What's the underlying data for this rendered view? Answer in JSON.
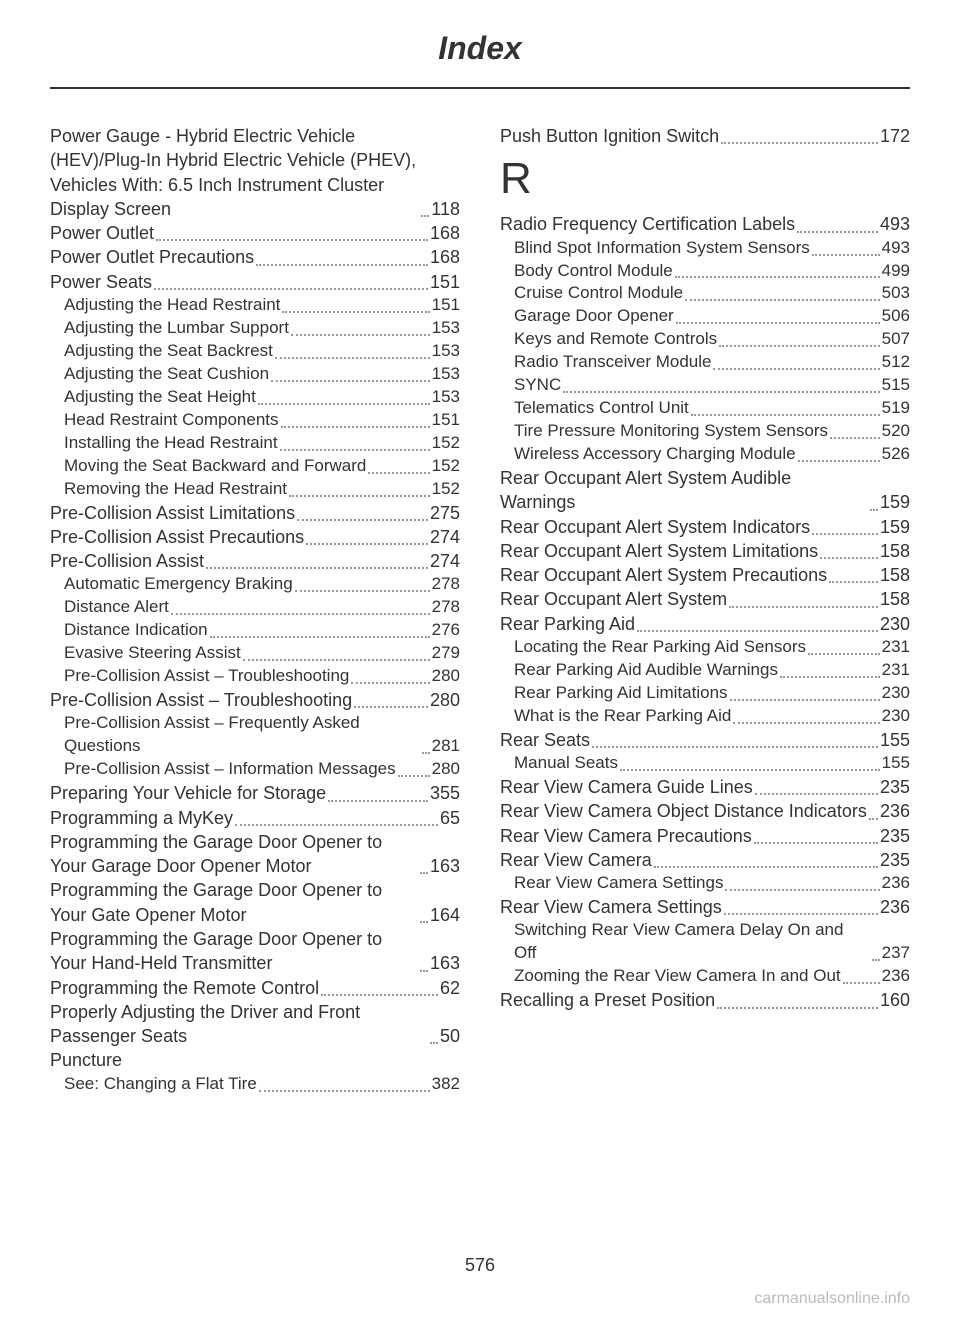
{
  "header": "Index",
  "page_number": "576",
  "watermark": "carmanualsonline.info",
  "section_letter": "R",
  "left": [
    {
      "label": "Power Gauge - Hybrid Electric Vehicle (HEV)/Plug-In Hybrid Electric Vehicle (PHEV), Vehicles With: 6.5 Inch Instrument Cluster Display Screen",
      "page": "118",
      "level": 0
    },
    {
      "label": "Power Outlet",
      "page": "168",
      "level": 0
    },
    {
      "label": "Power Outlet Precautions",
      "page": "168",
      "level": 0
    },
    {
      "label": "Power Seats",
      "page": "151",
      "level": 0
    },
    {
      "label": "Adjusting the Head Restraint",
      "page": "151",
      "level": 1
    },
    {
      "label": "Adjusting the Lumbar Support",
      "page": "153",
      "level": 1
    },
    {
      "label": "Adjusting the Seat Backrest",
      "page": "153",
      "level": 1
    },
    {
      "label": "Adjusting the Seat Cushion",
      "page": "153",
      "level": 1
    },
    {
      "label": "Adjusting the Seat Height",
      "page": "153",
      "level": 1
    },
    {
      "label": "Head Restraint Components",
      "page": "151",
      "level": 1
    },
    {
      "label": "Installing the Head Restraint",
      "page": "152",
      "level": 1
    },
    {
      "label": "Moving the Seat Backward and Forward",
      "page": "152",
      "level": 1
    },
    {
      "label": "Removing the Head Restraint",
      "page": "152",
      "level": 1
    },
    {
      "label": "Pre-Collision Assist Limitations",
      "page": "275",
      "level": 0
    },
    {
      "label": "Pre-Collision Assist Precautions",
      "page": "274",
      "level": 0
    },
    {
      "label": "Pre-Collision Assist",
      "page": "274",
      "level": 0
    },
    {
      "label": "Automatic Emergency Braking",
      "page": "278",
      "level": 1
    },
    {
      "label": "Distance Alert",
      "page": "278",
      "level": 1
    },
    {
      "label": "Distance Indication",
      "page": "276",
      "level": 1
    },
    {
      "label": "Evasive Steering Assist",
      "page": "279",
      "level": 1
    },
    {
      "label": "Pre-Collision Assist – Troubleshooting",
      "page": "280",
      "level": 1
    },
    {
      "label": "Pre-Collision Assist – Troubleshooting",
      "page": "280",
      "level": 0
    },
    {
      "label": "Pre-Collision Assist – Frequently Asked Questions",
      "page": "281",
      "level": 1
    },
    {
      "label": "Pre-Collision Assist – Information Messages",
      "page": "280",
      "level": 1
    },
    {
      "label": "Preparing Your Vehicle for Storage",
      "page": "355",
      "level": 0
    },
    {
      "label": "Programming a MyKey",
      "page": "65",
      "level": 0
    },
    {
      "label": "Programming the Garage Door Opener to Your Garage Door Opener Motor",
      "page": "163",
      "level": 0
    },
    {
      "label": "Programming the Garage Door Opener to Your Gate Opener Motor",
      "page": "164",
      "level": 0
    },
    {
      "label": "Programming the Garage Door Opener to Your Hand-Held Transmitter",
      "page": "163",
      "level": 0
    },
    {
      "label": "Programming the Remote Control",
      "page": "62",
      "level": 0
    },
    {
      "label": "Properly Adjusting the Driver and Front Passenger Seats",
      "page": "50",
      "level": 0
    },
    {
      "label": "Puncture",
      "page": "",
      "level": 0,
      "nopage": true
    },
    {
      "label": "See: Changing a Flat Tire",
      "page": "382",
      "level": 1
    }
  ],
  "right_top": [
    {
      "label": "Push Button Ignition Switch",
      "page": "172",
      "level": 0
    }
  ],
  "right": [
    {
      "label": "Radio Frequency Certification Labels",
      "page": "493",
      "level": 0
    },
    {
      "label": "Blind Spot Information System Sensors",
      "page": "493",
      "level": 1
    },
    {
      "label": "Body Control Module",
      "page": "499",
      "level": 1
    },
    {
      "label": "Cruise Control Module",
      "page": "503",
      "level": 1
    },
    {
      "label": "Garage Door Opener",
      "page": "506",
      "level": 1
    },
    {
      "label": "Keys and Remote Controls",
      "page": "507",
      "level": 1
    },
    {
      "label": "Radio Transceiver Module",
      "page": "512",
      "level": 1
    },
    {
      "label": "SYNC",
      "page": "515",
      "level": 1
    },
    {
      "label": "Telematics Control Unit",
      "page": "519",
      "level": 1
    },
    {
      "label": "Tire Pressure Monitoring System Sensors",
      "page": "520",
      "level": 1
    },
    {
      "label": "Wireless Accessory Charging Module",
      "page": "526",
      "level": 1
    },
    {
      "label": "Rear Occupant Alert System Audible Warnings",
      "page": "159",
      "level": 0
    },
    {
      "label": "Rear Occupant Alert System Indicators",
      "page": "159",
      "level": 0
    },
    {
      "label": "Rear Occupant Alert System Limitations",
      "page": "158",
      "level": 0
    },
    {
      "label": "Rear Occupant Alert System Precautions",
      "page": "158",
      "level": 0
    },
    {
      "label": "Rear Occupant Alert System",
      "page": "158",
      "level": 0
    },
    {
      "label": "Rear Parking Aid",
      "page": "230",
      "level": 0
    },
    {
      "label": "Locating the Rear Parking Aid Sensors",
      "page": "231",
      "level": 1
    },
    {
      "label": "Rear Parking Aid Audible Warnings",
      "page": "231",
      "level": 1
    },
    {
      "label": "Rear Parking Aid Limitations",
      "page": "230",
      "level": 1
    },
    {
      "label": "What is the Rear Parking Aid",
      "page": "230",
      "level": 1
    },
    {
      "label": "Rear Seats",
      "page": "155",
      "level": 0
    },
    {
      "label": "Manual Seats",
      "page": "155",
      "level": 1
    },
    {
      "label": "Rear View Camera Guide Lines",
      "page": "235",
      "level": 0
    },
    {
      "label": "Rear View Camera Object Distance Indicators",
      "page": "236",
      "level": 0
    },
    {
      "label": "Rear View Camera Precautions",
      "page": "235",
      "level": 0
    },
    {
      "label": "Rear View Camera",
      "page": "235",
      "level": 0
    },
    {
      "label": "Rear View Camera Settings",
      "page": "236",
      "level": 1
    },
    {
      "label": "Rear View Camera Settings",
      "page": "236",
      "level": 0
    },
    {
      "label": "Switching Rear View Camera Delay On and Off",
      "page": "237",
      "level": 1
    },
    {
      "label": "Zooming the Rear View Camera In and Out",
      "page": "236",
      "level": 1
    },
    {
      "label": "Recalling a Preset Position",
      "page": "160",
      "level": 0
    }
  ]
}
